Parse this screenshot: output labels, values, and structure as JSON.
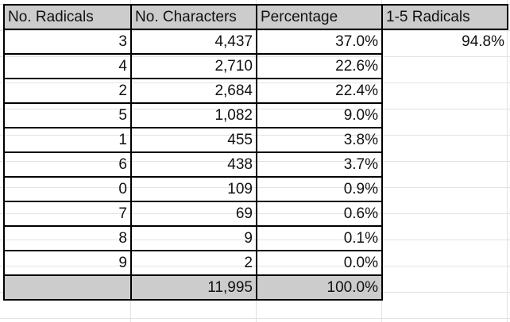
{
  "headers": [
    "No. Radicals",
    "No. Characters",
    "Percentage",
    "1-5 Radicals"
  ],
  "rows": [
    {
      "radicals": "3",
      "characters": "4,437",
      "percentage": "37.0%",
      "one_to_five": "94.8%"
    },
    {
      "radicals": "4",
      "characters": "2,710",
      "percentage": "22.6%",
      "one_to_five": ""
    },
    {
      "radicals": "2",
      "characters": "2,684",
      "percentage": "22.4%",
      "one_to_five": ""
    },
    {
      "radicals": "5",
      "characters": "1,082",
      "percentage": "9.0%",
      "one_to_five": ""
    },
    {
      "radicals": "1",
      "characters": "455",
      "percentage": "3.8%",
      "one_to_five": ""
    },
    {
      "radicals": "6",
      "characters": "438",
      "percentage": "3.7%",
      "one_to_five": ""
    },
    {
      "radicals": "0",
      "characters": "109",
      "percentage": "0.9%",
      "one_to_five": ""
    },
    {
      "radicals": "7",
      "characters": "69",
      "percentage": "0.6%",
      "one_to_five": ""
    },
    {
      "radicals": "8",
      "characters": "9",
      "percentage": "0.1%",
      "one_to_five": ""
    },
    {
      "radicals": "9",
      "characters": "2",
      "percentage": "0.0%",
      "one_to_five": ""
    }
  ],
  "total": {
    "radicals": "",
    "characters": "11,995",
    "percentage": "100.0%"
  },
  "colors": {
    "header_fill": "#cccccc",
    "total_fill": "#cccccc",
    "gridline": "#e2e2e2"
  }
}
